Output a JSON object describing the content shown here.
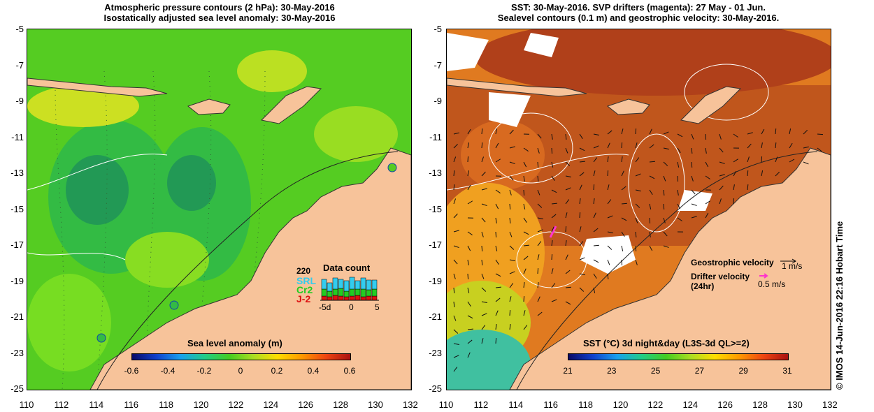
{
  "left_panel": {
    "title_line1": "Atmospheric pressure contours (2 hPa): 30-May-2016",
    "title_line2": "Isostatically adjusted sea level anomaly: 30-May-2016",
    "colorbar": {
      "title": "Sea level anomaly (m)",
      "ticks": [
        "-0.6",
        "-0.4",
        "-0.2",
        "0",
        "0.2",
        "0.4",
        "0.6"
      ]
    },
    "data_count": {
      "title": "Data count",
      "max_label": "220",
      "missions": [
        "SRL",
        "Cr2",
        "J-2"
      ],
      "x_ticks": [
        "-5d",
        "0",
        "5"
      ],
      "colors": {
        "SRL": "#33ccee",
        "Cr2": "#22cc22",
        "J-2": "#dd1111"
      }
    }
  },
  "right_panel": {
    "title_line1": "SST: 30-May-2016. SVP drifters (magenta): 27 May - 01 Jun.",
    "title_line2": "Sealevel contours (0.1 m) and geostrophic velocity: 30-May-2016.",
    "colorbar": {
      "title": "SST (°C) 3d night&day (L3S-3d QL>=2)",
      "ticks": [
        "21",
        "23",
        "25",
        "27",
        "29",
        "31"
      ]
    },
    "legend": {
      "geostrophic_label": "Geostrophic velocity",
      "geostrophic_scale": "1 m/s",
      "drifter_label_1": "Drifter velocity",
      "drifter_label_2": "(24hr)",
      "drifter_scale": "0.5 m/s"
    }
  },
  "axes": {
    "y_ticks": [
      "-5",
      "-7",
      "-9",
      "-11",
      "-13",
      "-15",
      "-17",
      "-19",
      "-21",
      "-23",
      "-25"
    ],
    "x_ticks": [
      "110",
      "112",
      "114",
      "116",
      "118",
      "120",
      "122",
      "124",
      "126",
      "128",
      "130",
      "132"
    ]
  },
  "credit": "© IMOS 14-Jun-2016 22:16 Hobart Time",
  "colors": {
    "land": "#f7c39a",
    "sla_green": "#44cc22",
    "sst_orange": "#e07a20",
    "sst_red": "#c0451c",
    "drifter": "#ff33cc"
  }
}
